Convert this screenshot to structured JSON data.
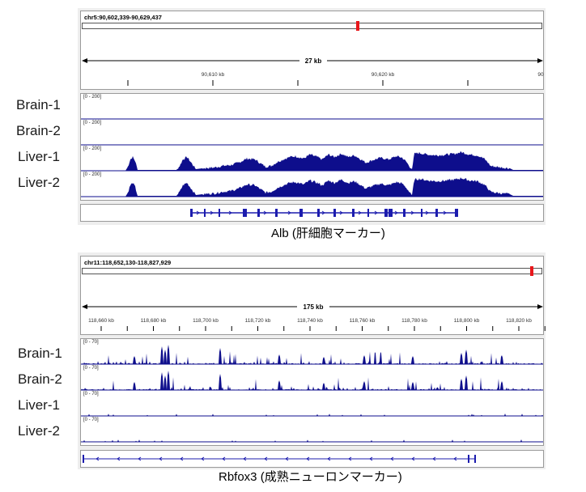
{
  "colors": {
    "track": "#0e0e8c",
    "gene": "#1c1cae",
    "region_marker": "#e8171b",
    "panel_bg": "#eeeeee"
  },
  "panels": [
    {
      "locus": "chr5:90,602,339-90,629,437",
      "ruler_span_label": "27 kb",
      "ruler_ticks": [
        "90,610 kb",
        "90,620 kb",
        "90"
      ],
      "data_range": "[0 - 200]",
      "tracks": [
        {
          "label": "Brain-1",
          "profile": "empty"
        },
        {
          "label": "Brain-2",
          "profile": "empty"
        },
        {
          "label": "Liver-1",
          "profile": "alb"
        },
        {
          "label": "Liver-2",
          "profile": "alb"
        }
      ],
      "gene_caption": "Alb (肝細胞マーカー)"
    },
    {
      "locus": "chr11:118,652,130-118,827,929",
      "ruler_span_label": "175 kb",
      "ruler_ticks": [
        "118,660 kb",
        "118,680 kb",
        "118,700 kb",
        "118,720 kb",
        "118,740 kb",
        "118,760 kb",
        "118,780 kb",
        "118,800 kb",
        "118,820 kb"
      ],
      "data_range": "[0 - 70]",
      "tracks": [
        {
          "label": "Brain-1",
          "profile": "rbfox"
        },
        {
          "label": "Brain-2",
          "profile": "rbfox"
        },
        {
          "label": "Liver-1",
          "profile": "flat"
        },
        {
          "label": "Liver-2",
          "profile": "flat"
        }
      ],
      "gene_caption": "Rbfox3 (成熟ニューロンマーカー)"
    }
  ]
}
